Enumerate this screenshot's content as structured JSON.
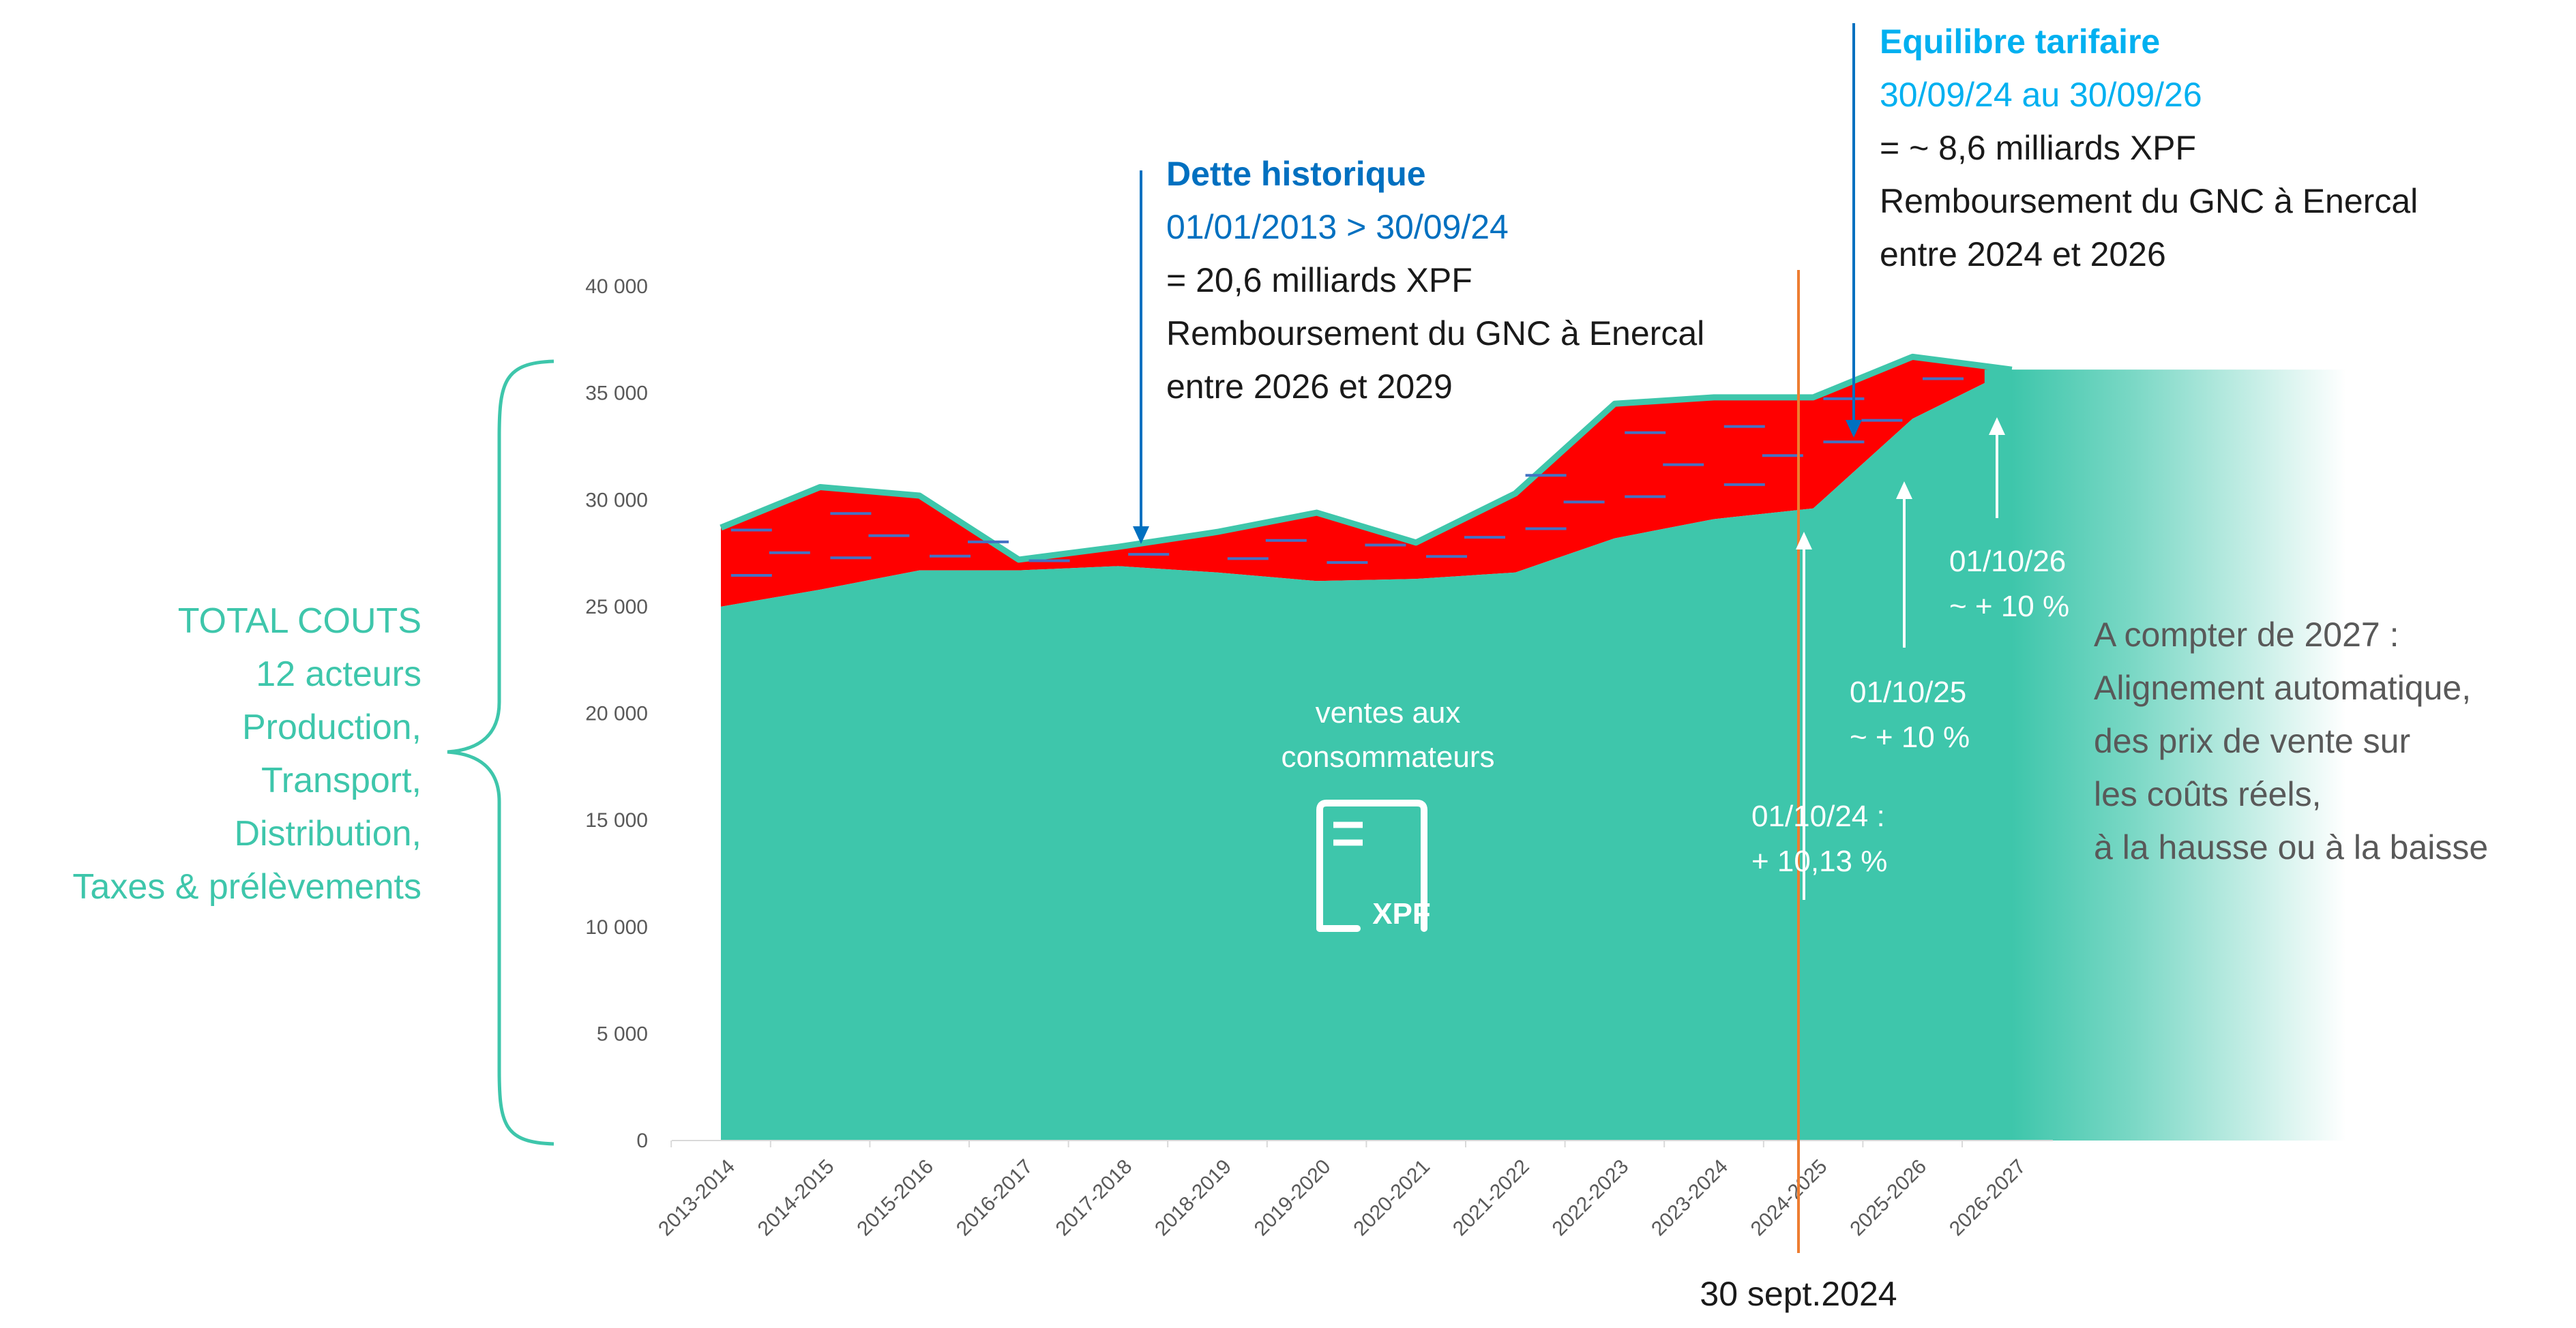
{
  "chart_data": {
    "type": "area",
    "categories": [
      "2013-2014",
      "2014-2015",
      "2015-2016",
      "2016-2017",
      "2017-2018",
      "2018-2019",
      "2019-2020",
      "2020-2021",
      "2021-2022",
      "2022-2023",
      "2023-2024",
      "2024-2025",
      "2025-2026",
      "2026-2027"
    ],
    "y_ticks": [
      "40 000",
      "35 000",
      "30 000",
      "25 000",
      "20 000",
      "15 000",
      "10 000",
      "5 000",
      "0"
    ],
    "ylim": [
      0,
      40000
    ],
    "series": [
      {
        "values": [
          25000,
          25800,
          26700,
          26700,
          26900,
          26600,
          26200,
          26300,
          26600,
          28200,
          29100,
          29600,
          33800,
          36100
        ],
        "color": "#3ec6ab"
      },
      {
        "values": [
          28700,
          30600,
          30200,
          27200,
          27800,
          28500,
          29400,
          28000,
          30300,
          34500,
          34800,
          34800,
          36700,
          36100
        ],
        "color": "#ff0000"
      }
    ],
    "grid": false
  },
  "left_label": [
    "TOTAL COUTS",
    "12 acteurs",
    "Production,",
    "Transport,",
    "Distribution,",
    "Taxes & prélèvements"
  ],
  "ventes_label": [
    "ventes aux",
    "consommateurs"
  ],
  "xpf_icon_label": "XPF",
  "dette": {
    "title": "Dette historique",
    "period": "01/01/2013 > 30/09/24",
    "amount": "= 20,6 milliards XPF",
    "line1": "Remboursement du GNC à Enercal",
    "line2": "entre 2026 et 2029"
  },
  "equilibre": {
    "title": "Equilibre tarifaire",
    "period": "30/09/24 au 30/09/26",
    "amount": "= ~ 8,6 milliards XPF",
    "line1": "Remboursement du GNC à Enercal",
    "line2": "entre 2024 et 2026"
  },
  "hausse_2024": [
    "01/10/24 :",
    "+ 10,13 %"
  ],
  "hausse_2025": [
    "01/10/25",
    "~ + 10 %"
  ],
  "hausse_2026": [
    "01/10/26",
    "~ + 10 %"
  ],
  "alignement": [
    "A compter de 2027 :",
    "Alignement automatique,",
    "des prix de vente sur",
    "les coûts réels,",
    "à la hausse ou à la baisse"
  ],
  "sept_label": "30 sept.2024",
  "colors": {
    "teal": "#3ec6ab",
    "red": "#ff0000",
    "dark_blue": "#0070c0",
    "light_blue": "#00b0f0",
    "orange": "#ed7d31"
  }
}
